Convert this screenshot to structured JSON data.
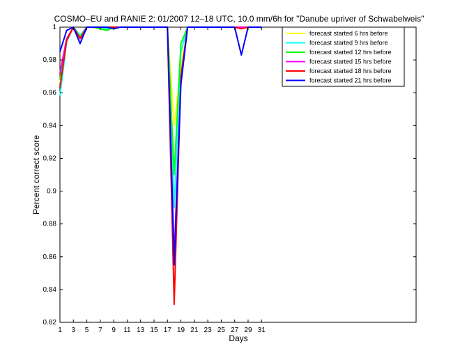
{
  "chart_data": {
    "type": "line",
    "title": "COSMO–EU and RANIE 2: 01/2007 12–18 UTC, 10.0 mm/6h for \"Danube upriver of Schwabelweis\"",
    "xlabel": "Days",
    "ylabel": "Percent correct score",
    "xlim": [
      1,
      54
    ],
    "ylim": [
      0.82,
      1.0
    ],
    "x_ticks": [
      1,
      3,
      5,
      7,
      9,
      11,
      13,
      15,
      17,
      19,
      21,
      23,
      25,
      27,
      29,
      31
    ],
    "y_ticks": [
      0.82,
      0.84,
      0.86,
      0.88,
      0.9,
      0.92,
      0.94,
      0.96,
      0.98,
      1
    ],
    "y_tick_labels": [
      "0.82",
      "0.84",
      "0.86",
      "0.88",
      "0.9",
      "0.92",
      "0.94",
      "0.96",
      "0.98",
      "1"
    ],
    "grid": false,
    "legend_position": "top-right",
    "series": [
      {
        "name": "forecast started 6 hrs before",
        "color": "#ffff00",
        "x": [
          1,
          2,
          3,
          4,
          5,
          6,
          7,
          8,
          9,
          10,
          11,
          12,
          13,
          14,
          15,
          16,
          17,
          18,
          19,
          20,
          21,
          22,
          23,
          24,
          25,
          26,
          27,
          28,
          29,
          30,
          31
        ],
        "values": [
          0.966,
          0.993,
          1,
          0.995,
          1,
          1,
          1,
          0.999,
          1,
          1,
          1,
          1,
          1,
          1,
          1,
          1,
          1,
          0.94,
          0.975,
          1,
          1,
          1,
          1,
          1,
          1,
          1,
          1,
          1,
          1,
          1,
          1
        ]
      },
      {
        "name": "forecast started 9 hrs before",
        "color": "#00ffff",
        "x": [
          1,
          2,
          3,
          4,
          5,
          6,
          7,
          8,
          9,
          10,
          11,
          12,
          13,
          14,
          15,
          16,
          17,
          18,
          19,
          20,
          21,
          22,
          23,
          24,
          25,
          26,
          27,
          28,
          29,
          30,
          31
        ],
        "values": [
          0.958,
          0.991,
          1,
          0.995,
          1,
          1,
          1,
          0.999,
          1,
          1,
          1,
          1,
          1,
          1,
          1,
          1,
          1,
          0.89,
          0.985,
          1,
          1,
          1,
          1,
          1,
          1,
          1,
          1,
          1,
          1,
          1,
          1
        ]
      },
      {
        "name": "forecast started 12 hrs before",
        "color": "#00ff00",
        "x": [
          1,
          2,
          3,
          4,
          5,
          6,
          7,
          8,
          9,
          10,
          11,
          12,
          13,
          14,
          15,
          16,
          17,
          18,
          19,
          20,
          21,
          22,
          23,
          24,
          25,
          26,
          27,
          28,
          29,
          30,
          31
        ],
        "values": [
          0.968,
          0.992,
          1,
          0.994,
          1,
          1,
          0.999,
          0.998,
          1,
          1,
          1,
          1,
          1,
          1,
          1,
          1,
          1,
          0.91,
          0.99,
          1,
          1,
          1,
          1,
          1,
          1,
          1,
          1,
          1,
          1,
          1,
          1
        ]
      },
      {
        "name": "forecast started 15 hrs before",
        "color": "#ff00ff",
        "x": [
          1,
          2,
          3,
          4,
          5,
          6,
          7,
          8,
          9,
          10,
          11,
          12,
          13,
          14,
          15,
          16,
          17,
          18,
          19,
          20,
          21,
          22,
          23,
          24,
          25,
          26,
          27,
          28,
          29,
          30,
          31
        ],
        "values": [
          0.972,
          0.993,
          1,
          0.993,
          1,
          1,
          1,
          1,
          1,
          1,
          1,
          1,
          1,
          1,
          1,
          1,
          1,
          0.86,
          0.968,
          1,
          1,
          1,
          1,
          1,
          1,
          1,
          1,
          1,
          1,
          1,
          1
        ]
      },
      {
        "name": "forecast started 18 hrs before",
        "color": "#ff0000",
        "x": [
          1,
          2,
          3,
          4,
          5,
          6,
          7,
          8,
          9,
          10,
          11,
          12,
          13,
          14,
          15,
          16,
          17,
          18,
          19,
          20,
          21,
          22,
          23,
          24,
          25,
          26,
          27,
          28,
          29,
          30,
          31
        ],
        "values": [
          0.963,
          0.992,
          1,
          0.993,
          1,
          1,
          1,
          1,
          1,
          1,
          1,
          1,
          1,
          1,
          1,
          1,
          1,
          0.831,
          0.97,
          1,
          1,
          1,
          1,
          1,
          1,
          1,
          1,
          0.999,
          1,
          1,
          1
        ]
      },
      {
        "name": "forecast started 21 hrs before",
        "color": "#0000ff",
        "x": [
          1,
          2,
          3,
          4,
          5,
          6,
          7,
          8,
          9,
          10,
          11,
          12,
          13,
          14,
          15,
          16,
          17,
          18,
          19,
          20,
          21,
          22,
          23,
          24,
          25,
          26,
          27,
          28,
          29,
          30,
          31
        ],
        "values": [
          0.985,
          0.998,
          1,
          0.99,
          1,
          1,
          1,
          1,
          0.999,
          1,
          1,
          1,
          1,
          1,
          1,
          1,
          1,
          0.855,
          0.965,
          1,
          1,
          1,
          1,
          1,
          1,
          1,
          1,
          0.983,
          1,
          1,
          1
        ]
      }
    ]
  }
}
